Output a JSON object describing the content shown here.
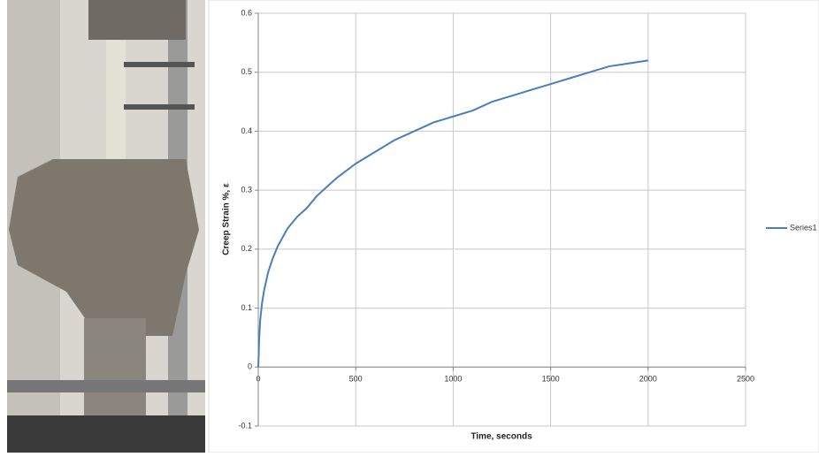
{
  "chart_data": {
    "type": "line",
    "xlabel": "Time, seconds",
    "ylabel": "Creep  Strain %, ε",
    "x": [
      0,
      5,
      10,
      20,
      30,
      50,
      75,
      100,
      150,
      200,
      250,
      300,
      400,
      500,
      600,
      700,
      800,
      900,
      1000,
      1100,
      1200,
      1300,
      1400,
      1500,
      1600,
      1700,
      1800,
      1900,
      2000
    ],
    "series": [
      {
        "name": "Series1",
        "color": "#4a7ebb",
        "values": [
          0,
          0.05,
          0.08,
          0.11,
          0.13,
          0.16,
          0.185,
          0.205,
          0.235,
          0.255,
          0.27,
          0.29,
          0.32,
          0.345,
          0.365,
          0.385,
          0.4,
          0.415,
          0.425,
          0.435,
          0.45,
          0.46,
          0.47,
          0.48,
          0.49,
          0.5,
          0.51,
          0.515,
          0.52
        ]
      }
    ],
    "xlim": [
      0,
      2500
    ],
    "xticks": [
      0,
      500,
      1000,
      1500,
      2000,
      2500
    ],
    "ylim": [
      -0.1,
      0.6
    ],
    "yticks": [
      -0.1,
      0,
      0.1,
      0.2,
      0.3,
      0.4,
      0.5,
      0.6
    ],
    "grid": true,
    "legend": "right"
  }
}
